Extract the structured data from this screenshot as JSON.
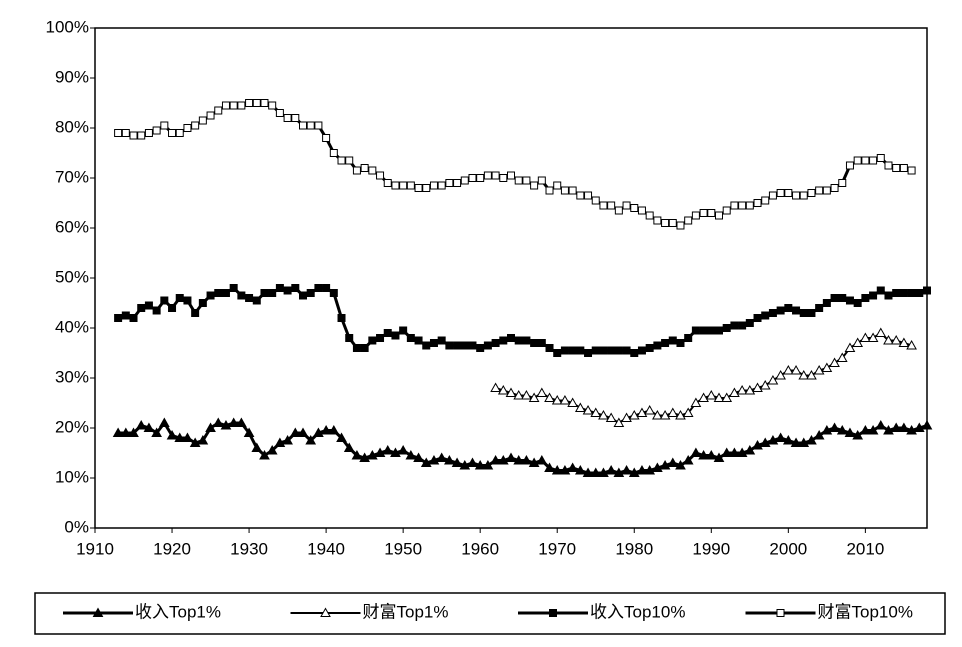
{
  "chart_data": {
    "type": "line",
    "x": [
      1913,
      1914,
      1915,
      1916,
      1917,
      1918,
      1919,
      1920,
      1921,
      1922,
      1923,
      1924,
      1925,
      1926,
      1927,
      1928,
      1929,
      1930,
      1931,
      1932,
      1933,
      1934,
      1935,
      1936,
      1937,
      1938,
      1939,
      1940,
      1941,
      1942,
      1943,
      1944,
      1945,
      1946,
      1947,
      1948,
      1949,
      1950,
      1951,
      1952,
      1953,
      1954,
      1955,
      1956,
      1957,
      1958,
      1959,
      1960,
      1961,
      1962,
      1963,
      1964,
      1965,
      1966,
      1967,
      1968,
      1969,
      1970,
      1971,
      1972,
      1973,
      1974,
      1975,
      1976,
      1977,
      1978,
      1979,
      1980,
      1981,
      1982,
      1983,
      1984,
      1985,
      1986,
      1987,
      1988,
      1989,
      1990,
      1991,
      1992,
      1993,
      1994,
      1995,
      1996,
      1997,
      1998,
      1999,
      2000,
      2001,
      2002,
      2003,
      2004,
      2005,
      2006,
      2007,
      2008,
      2009,
      2010,
      2011,
      2012,
      2013,
      2014,
      2015,
      2016,
      2017,
      2018
    ],
    "series": [
      {
        "name": "收入Top1%",
        "color": "#000000",
        "marker": "triangle",
        "marker_fill": "#000000",
        "line_width": 3,
        "values": [
          19,
          19,
          19,
          20.5,
          20,
          19,
          21,
          18.5,
          18,
          18,
          17,
          17.5,
          20,
          21,
          20.5,
          21,
          21,
          19,
          16,
          14.5,
          15.5,
          17,
          17.5,
          19,
          19,
          17.5,
          19,
          19.5,
          19.5,
          18,
          16,
          14.5,
          14,
          14.5,
          15,
          15.5,
          15,
          15.5,
          14.5,
          14,
          13,
          13.5,
          14,
          13.5,
          13,
          12.5,
          13,
          12.5,
          12.5,
          13.5,
          13.5,
          14,
          13.5,
          13.5,
          13,
          13.5,
          12,
          11.5,
          11.5,
          12,
          11.5,
          11,
          11,
          11,
          11.5,
          11,
          11.5,
          11,
          11.5,
          11.5,
          12,
          12.5,
          13,
          12.5,
          13.5,
          15,
          14.5,
          14.5,
          14,
          15,
          15,
          15,
          15.5,
          16.5,
          17,
          17.5,
          18,
          17.5,
          17,
          17,
          17.5,
          18.5,
          19.5,
          20,
          19.5,
          19,
          18.5,
          19.5,
          19.5,
          20.5,
          19.5,
          20,
          20,
          19.5,
          20,
          20.5
        ]
      },
      {
        "name": "财富Top1%",
        "color": "#000000",
        "marker": "triangle",
        "marker_fill": "#ffffff",
        "line_width": 2,
        "values": [
          null,
          null,
          null,
          null,
          null,
          null,
          null,
          null,
          null,
          null,
          null,
          null,
          null,
          null,
          null,
          null,
          null,
          null,
          null,
          null,
          null,
          null,
          null,
          null,
          null,
          null,
          null,
          null,
          null,
          null,
          null,
          null,
          null,
          null,
          null,
          null,
          null,
          null,
          null,
          null,
          null,
          null,
          null,
          null,
          null,
          null,
          null,
          null,
          null,
          28,
          27.5,
          27,
          26.5,
          26.5,
          26,
          27,
          26,
          25.5,
          25.5,
          25,
          24,
          23.5,
          23,
          22.5,
          22,
          21,
          22,
          22.5,
          23,
          23.5,
          22.5,
          22.5,
          23,
          22.5,
          23,
          25,
          26,
          26.5,
          26,
          26,
          27,
          27.5,
          27.5,
          28,
          28.5,
          29.5,
          30.5,
          31.5,
          31.5,
          30.5,
          30.5,
          31.5,
          32,
          33,
          34,
          36,
          37,
          38,
          38,
          39,
          37.5,
          37.5,
          37,
          36.5,
          null,
          null
        ]
      },
      {
        "name": "收入Top10%",
        "color": "#000000",
        "marker": "square",
        "marker_fill": "#000000",
        "line_width": 3,
        "values": [
          42,
          42.5,
          42,
          44,
          44.5,
          43.5,
          45.5,
          44,
          46,
          45.5,
          43,
          45,
          46.5,
          47,
          47,
          48,
          46.5,
          46,
          45.5,
          47,
          47,
          48,
          47.5,
          48,
          46.5,
          47,
          48,
          48,
          47,
          42,
          38,
          36,
          36,
          37.5,
          38,
          39,
          38.5,
          39.5,
          38,
          37.5,
          36.5,
          37,
          37.5,
          36.5,
          36.5,
          36.5,
          36.5,
          36,
          36.5,
          37,
          37.5,
          38,
          37.5,
          37.5,
          37,
          37,
          36,
          35,
          35.5,
          35.5,
          35.5,
          35,
          35.5,
          35.5,
          35.5,
          35.5,
          35.5,
          35,
          35.5,
          36,
          36.5,
          37,
          37.5,
          37,
          38,
          39.5,
          39.5,
          39.5,
          39.5,
          40,
          40.5,
          40.5,
          41,
          42,
          42.5,
          43,
          43.5,
          44,
          43.5,
          43,
          43,
          44,
          45,
          46,
          46,
          45.5,
          45,
          46,
          46.5,
          47.5,
          46.5,
          47,
          47,
          47,
          47,
          47.5
        ]
      },
      {
        "name": "财富Top10%",
        "color": "#000000",
        "marker": "square",
        "marker_fill": "#ffffff",
        "line_width": 3,
        "values": [
          79,
          79,
          78.5,
          78.5,
          79,
          79.5,
          80.5,
          79,
          79,
          80,
          80.5,
          81.5,
          82.5,
          83.5,
          84.5,
          84.5,
          84.5,
          85,
          85,
          85,
          84.5,
          83,
          82,
          82,
          80.5,
          80.5,
          80.5,
          78,
          75,
          73.5,
          73.5,
          71.5,
          72,
          71.5,
          70.5,
          69,
          68.5,
          68.5,
          68.5,
          68,
          68,
          68.5,
          68.5,
          69,
          69,
          69.5,
          70,
          70,
          70.5,
          70.5,
          70,
          70.5,
          69.5,
          69.5,
          68.5,
          69.5,
          67.5,
          68.5,
          67.5,
          67.5,
          66.5,
          66.5,
          65.5,
          64.5,
          64.5,
          63.5,
          64.5,
          64,
          63.5,
          62.5,
          61.5,
          61,
          61,
          60.5,
          61.5,
          62.5,
          63,
          63,
          62.5,
          63.5,
          64.5,
          64.5,
          64.5,
          65,
          65.5,
          66.5,
          67,
          67,
          66.5,
          66.5,
          67,
          67.5,
          67.5,
          68,
          69,
          72.5,
          73.5,
          73.5,
          73.5,
          74,
          72.5,
          72,
          72,
          71.5,
          null,
          null
        ]
      }
    ],
    "xlim": [
      1910,
      2018
    ],
    "xticks": [
      1910,
      1920,
      1930,
      1940,
      1950,
      1960,
      1970,
      1980,
      1990,
      2000,
      2010
    ],
    "ylim": [
      0,
      100
    ],
    "yticks": [
      {
        "value": 0,
        "label": "0%"
      },
      {
        "value": 10,
        "label": "10%"
      },
      {
        "value": 20,
        "label": "20%"
      },
      {
        "value": 30,
        "label": "30%"
      },
      {
        "value": 40,
        "label": "40%"
      },
      {
        "value": 50,
        "label": "50%"
      },
      {
        "value": 60,
        "label": "60%"
      },
      {
        "value": 70,
        "label": "70%"
      },
      {
        "value": 80,
        "label": "80%"
      },
      {
        "value": 90,
        "label": "90%"
      },
      {
        "value": 100,
        "label": "100%"
      }
    ],
    "grid": false,
    "legend": "bottom"
  }
}
